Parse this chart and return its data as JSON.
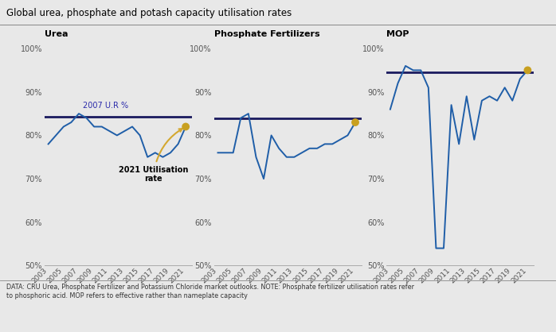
{
  "title": "Global urea, phosphate and potash capacity utilisation rates",
  "footnote": "DATA: CRU Urea, Phosphate Fertilizer and Potassium Chloride market outlooks. NOTE: Phosphate fertilizer utilisation rates refer\nto phosphoric acid. MOP refers to effective rather than nameplate capacity",
  "background_color": "#e8e8e8",
  "line_color": "#1f5ea8",
  "hline_color": "#1a1a5e",
  "dot_color": "#c8a020",
  "years": [
    2003,
    2004,
    2005,
    2006,
    2007,
    2008,
    2009,
    2010,
    2011,
    2012,
    2013,
    2014,
    2015,
    2016,
    2017,
    2018,
    2019,
    2020,
    2021
  ],
  "urea": [
    78,
    80,
    82,
    83,
    85,
    84,
    82,
    82,
    81,
    80,
    81,
    82,
    80,
    75,
    76,
    75,
    76,
    78,
    82
  ],
  "urea_hline": 84.2,
  "urea_2021": 82,
  "phosphate": [
    76,
    76,
    76,
    84,
    85,
    75,
    70,
    80,
    77,
    75,
    75,
    76,
    77,
    77,
    78,
    78,
    79,
    80,
    83
  ],
  "phosphate_hline": 84.0,
  "phosphate_2021": 83,
  "mop": [
    86,
    92,
    96,
    95,
    95,
    91,
    54,
    54,
    87,
    78,
    89,
    79,
    88,
    89,
    88,
    91,
    88,
    93,
    95
  ],
  "mop_hline": 94.5,
  "mop_2021": 95,
  "ylim": [
    50,
    102
  ],
  "yticks": [
    50,
    60,
    70,
    80,
    90,
    100
  ],
  "xtick_years": [
    2003,
    2005,
    2007,
    2009,
    2011,
    2013,
    2015,
    2017,
    2019,
    2021
  ],
  "panel_titles": [
    "Urea",
    "Phosphate Fertilizers",
    "MOP"
  ],
  "annotation_2007_urea": "2007 U.R %",
  "annotation_2021": "2021 Utilisation\nrate"
}
